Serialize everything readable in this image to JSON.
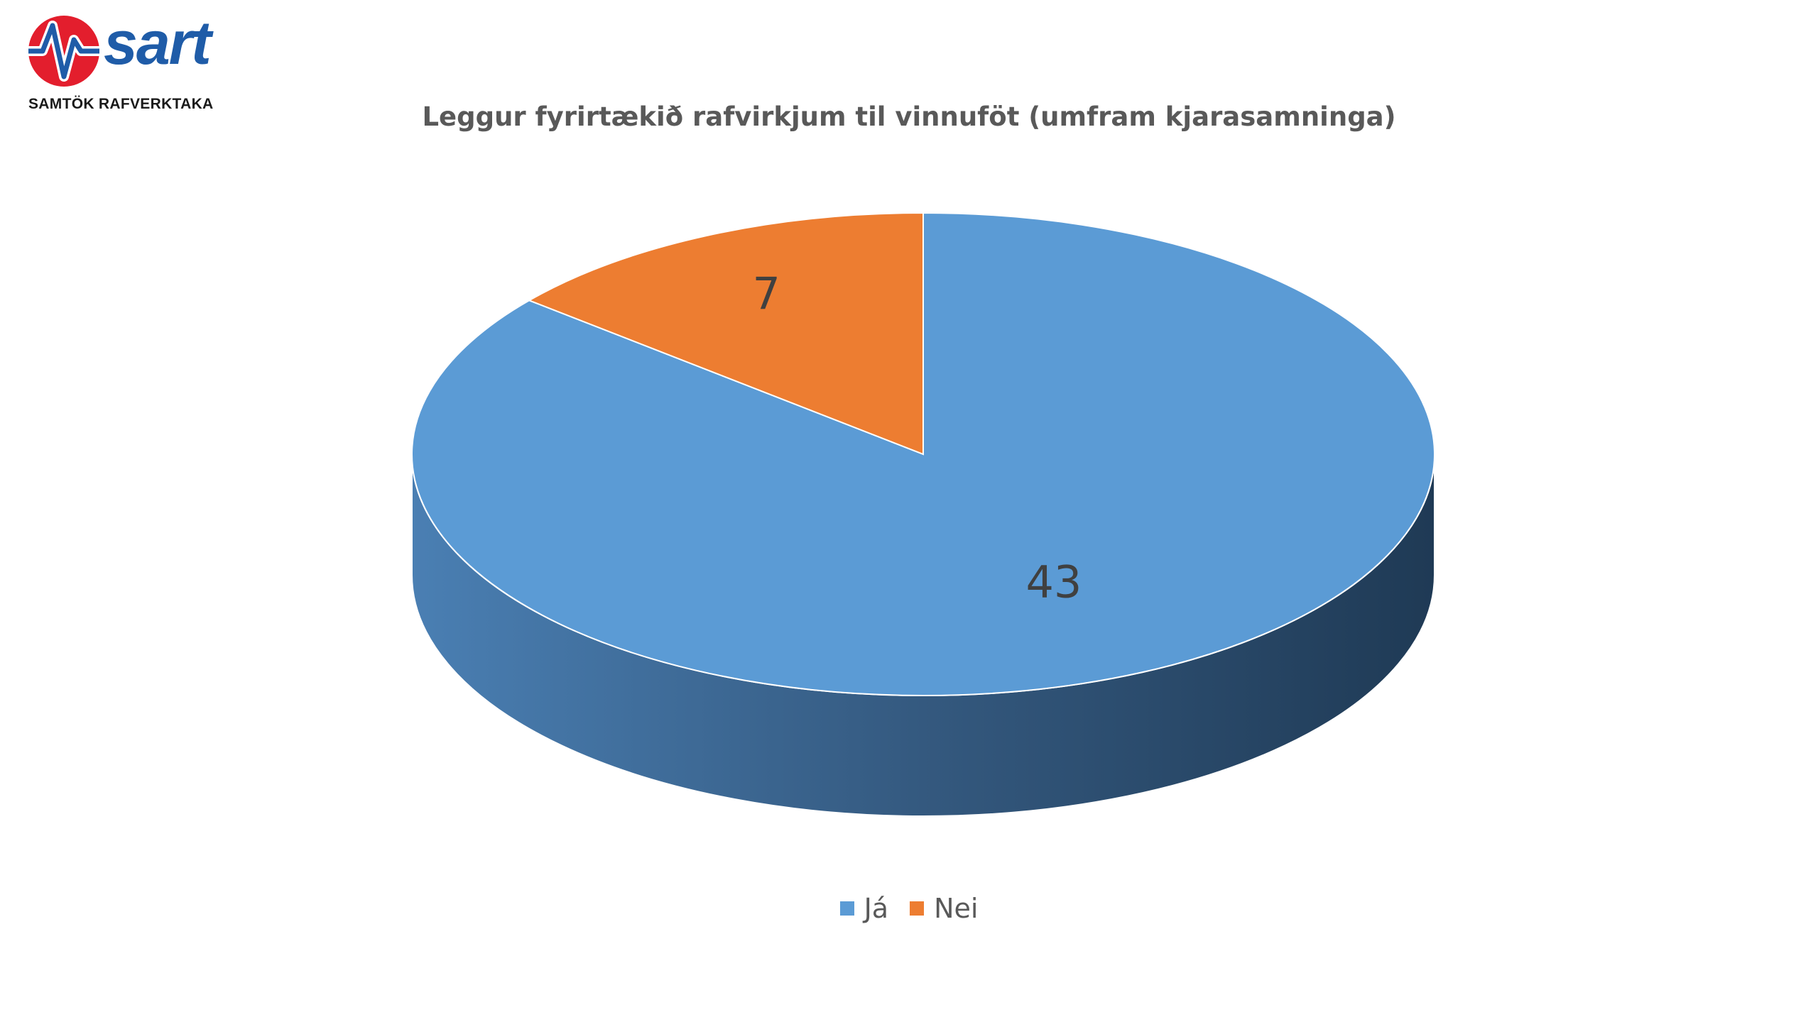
{
  "logo": {
    "wordmark": "sart",
    "tagline": "SAMTÖK RAFVERKTAKA",
    "colors": {
      "red": "#e31e2d",
      "blue": "#1f5ca8"
    }
  },
  "chart_data": {
    "type": "pie",
    "title": "Leggur fyrirtækið rafvirkjum til vinnuföt (umfram kjarasamninga)",
    "style": "3d",
    "legend_position": "bottom",
    "slices": [
      {
        "label": "Já",
        "value": 43,
        "color": "#5b9bd5",
        "side_color": "#2e5683"
      },
      {
        "label": "Nei",
        "value": 7,
        "color": "#ed7d31",
        "side_color": "#9e4f1a"
      }
    ],
    "data_labels": [
      "43",
      "7"
    ]
  }
}
